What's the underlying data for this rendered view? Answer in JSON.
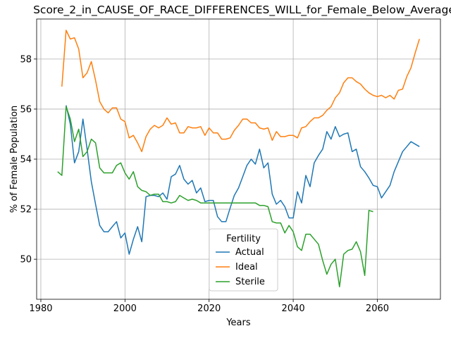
{
  "chart_data": {
    "type": "line",
    "title": "Score_2_in_CAUSE_OF_RACE_DIFFERENCES_WILL_for_Female_Below_Average",
    "xlabel": "Years",
    "ylabel": "% of Female Population",
    "xlim": [
      1979,
      2075
    ],
    "ylim": [
      48.4,
      59.6
    ],
    "x_ticks": [
      1980,
      2000,
      2020,
      2040,
      2060
    ],
    "y_ticks": [
      50,
      52,
      54,
      56,
      58
    ],
    "grid": true,
    "legend": {
      "title": "Fertility",
      "placement": "lower-center"
    },
    "series": [
      {
        "name": "Actual",
        "color": "#1f77b4",
        "x": [
          1986,
          1987,
          1988,
          1989,
          1990,
          1991,
          1992,
          1993,
          1994,
          1995,
          1996,
          1997,
          1998,
          1999,
          2000,
          2001,
          2002,
          2003,
          2004,
          2005,
          2006,
          2007,
          2008,
          2009,
          2010,
          2011,
          2012,
          2013,
          2014,
          2015,
          2016,
          2017,
          2018,
          2019,
          2020,
          2021,
          2022,
          2023,
          2024,
          2025,
          2026,
          2027,
          2028,
          2029,
          2030,
          2031,
          2032,
          2033,
          2034,
          2035,
          2036,
          2037,
          2038,
          2039,
          2040,
          2041,
          2042,
          2043,
          2044,
          2045,
          2046,
          2047,
          2048,
          2049,
          2050,
          2051,
          2052,
          2053,
          2054,
          2055,
          2056,
          2057,
          2058,
          2059,
          2060,
          2061,
          2062,
          2063,
          2064,
          2065,
          2066,
          2067,
          2068,
          2069,
          2070
        ],
        "values": [
          56.15,
          55.4,
          53.85,
          54.3,
          55.6,
          54.4,
          53.1,
          52.2,
          51.35,
          51.1,
          51.1,
          51.3,
          51.5,
          50.85,
          51.05,
          50.2,
          50.8,
          51.3,
          50.7,
          52.5,
          52.55,
          52.55,
          52.5,
          52.65,
          52.4,
          53.3,
          53.4,
          53.75,
          53.2,
          53.0,
          53.15,
          52.65,
          52.85,
          52.3,
          52.35,
          52.35,
          51.7,
          51.5,
          51.5,
          52.05,
          52.55,
          52.85,
          53.3,
          53.75,
          54.0,
          53.8,
          54.4,
          53.65,
          53.85,
          52.6,
          52.2,
          52.35,
          52.1,
          51.65,
          51.65,
          52.7,
          52.25,
          53.35,
          52.9,
          53.85,
          54.15,
          54.4,
          55.1,
          54.8,
          55.3,
          54.9,
          55.0,
          55.05,
          54.3,
          54.4,
          53.7,
          53.5,
          53.25,
          52.95,
          52.9,
          52.45,
          52.7,
          52.95,
          53.5,
          53.9,
          54.3,
          54.5,
          54.7,
          54.6,
          54.5
        ]
      },
      {
        "name": "Ideal",
        "color": "#ff7f0e",
        "x": [
          1985,
          1986,
          1987,
          1988,
          1989,
          1990,
          1991,
          1992,
          1993,
          1994,
          1995,
          1996,
          1997,
          1998,
          1999,
          2000,
          2001,
          2002,
          2003,
          2004,
          2005,
          2006,
          2007,
          2008,
          2009,
          2010,
          2011,
          2012,
          2013,
          2014,
          2015,
          2016,
          2017,
          2018,
          2019,
          2020,
          2021,
          2022,
          2023,
          2024,
          2025,
          2026,
          2027,
          2028,
          2029,
          2030,
          2031,
          2032,
          2033,
          2034,
          2035,
          2036,
          2037,
          2038,
          2039,
          2040,
          2041,
          2042,
          2043,
          2044,
          2045,
          2046,
          2047,
          2048,
          2049,
          2050,
          2051,
          2052,
          2053,
          2054,
          2055,
          2056,
          2057,
          2058,
          2059,
          2060,
          2061,
          2062,
          2063,
          2064,
          2065,
          2066,
          2067,
          2068,
          2069,
          2070
        ],
        "values": [
          56.9,
          59.15,
          58.8,
          58.85,
          58.4,
          57.25,
          57.45,
          57.9,
          57.15,
          56.3,
          56.0,
          55.85,
          56.05,
          56.05,
          55.6,
          55.5,
          54.85,
          54.95,
          54.65,
          54.3,
          54.9,
          55.2,
          55.35,
          55.25,
          55.35,
          55.65,
          55.4,
          55.45,
          55.05,
          55.05,
          55.3,
          55.25,
          55.25,
          55.3,
          54.95,
          55.25,
          55.05,
          55.05,
          54.8,
          54.8,
          54.85,
          55.15,
          55.35,
          55.6,
          55.6,
          55.45,
          55.45,
          55.25,
          55.2,
          55.25,
          54.75,
          55.1,
          54.9,
          54.9,
          54.95,
          54.95,
          54.85,
          55.25,
          55.3,
          55.5,
          55.65,
          55.65,
          55.75,
          55.95,
          56.1,
          56.45,
          56.65,
          57.05,
          57.25,
          57.25,
          57.1,
          57.0,
          56.8,
          56.65,
          56.55,
          56.5,
          56.55,
          56.45,
          56.55,
          56.4,
          56.75,
          56.8,
          57.3,
          57.65,
          58.25,
          58.8
        ]
      },
      {
        "name": "Sterile",
        "color": "#2ca02c",
        "x": [
          1984,
          1985,
          1986,
          1987,
          1988,
          1989,
          1990,
          1991,
          1992,
          1993,
          1994,
          1995,
          1996,
          1997,
          1998,
          1999,
          2000,
          2001,
          2002,
          2003,
          2004,
          2005,
          2006,
          2007,
          2008,
          2009,
          2010,
          2011,
          2012,
          2013,
          2014,
          2015,
          2016,
          2017,
          2018,
          2019,
          2020,
          2021,
          2022,
          2023,
          2024,
          2025,
          2026,
          2027,
          2028,
          2029,
          2030,
          2031,
          2032,
          2033,
          2034,
          2035,
          2036,
          2037,
          2038,
          2039,
          2040,
          2041,
          2042,
          2043,
          2044,
          2045,
          2046,
          2047,
          2048,
          2049,
          2050,
          2051,
          2052,
          2053,
          2054,
          2055,
          2056,
          2057,
          2058,
          2059
        ],
        "values": [
          53.5,
          53.35,
          56.1,
          55.6,
          54.7,
          55.2,
          54.1,
          54.3,
          54.8,
          54.65,
          53.65,
          53.45,
          53.45,
          53.45,
          53.75,
          53.85,
          53.45,
          53.2,
          53.5,
          52.9,
          52.75,
          52.7,
          52.55,
          52.6,
          52.6,
          52.3,
          52.3,
          52.25,
          52.3,
          52.55,
          52.45,
          52.35,
          52.4,
          52.35,
          52.25,
          52.25,
          52.25,
          52.25,
          52.25,
          52.25,
          52.25,
          52.25,
          52.25,
          52.25,
          52.25,
          52.25,
          52.25,
          52.25,
          52.15,
          52.15,
          52.1,
          51.5,
          51.45,
          51.45,
          51.05,
          51.35,
          51.1,
          50.5,
          50.35,
          51.0,
          51.0,
          50.8,
          50.6,
          49.95,
          49.4,
          49.8,
          50.0,
          48.9,
          50.2,
          50.35,
          50.4,
          50.7,
          50.3,
          49.35,
          51.95,
          51.9
        ]
      }
    ]
  }
}
